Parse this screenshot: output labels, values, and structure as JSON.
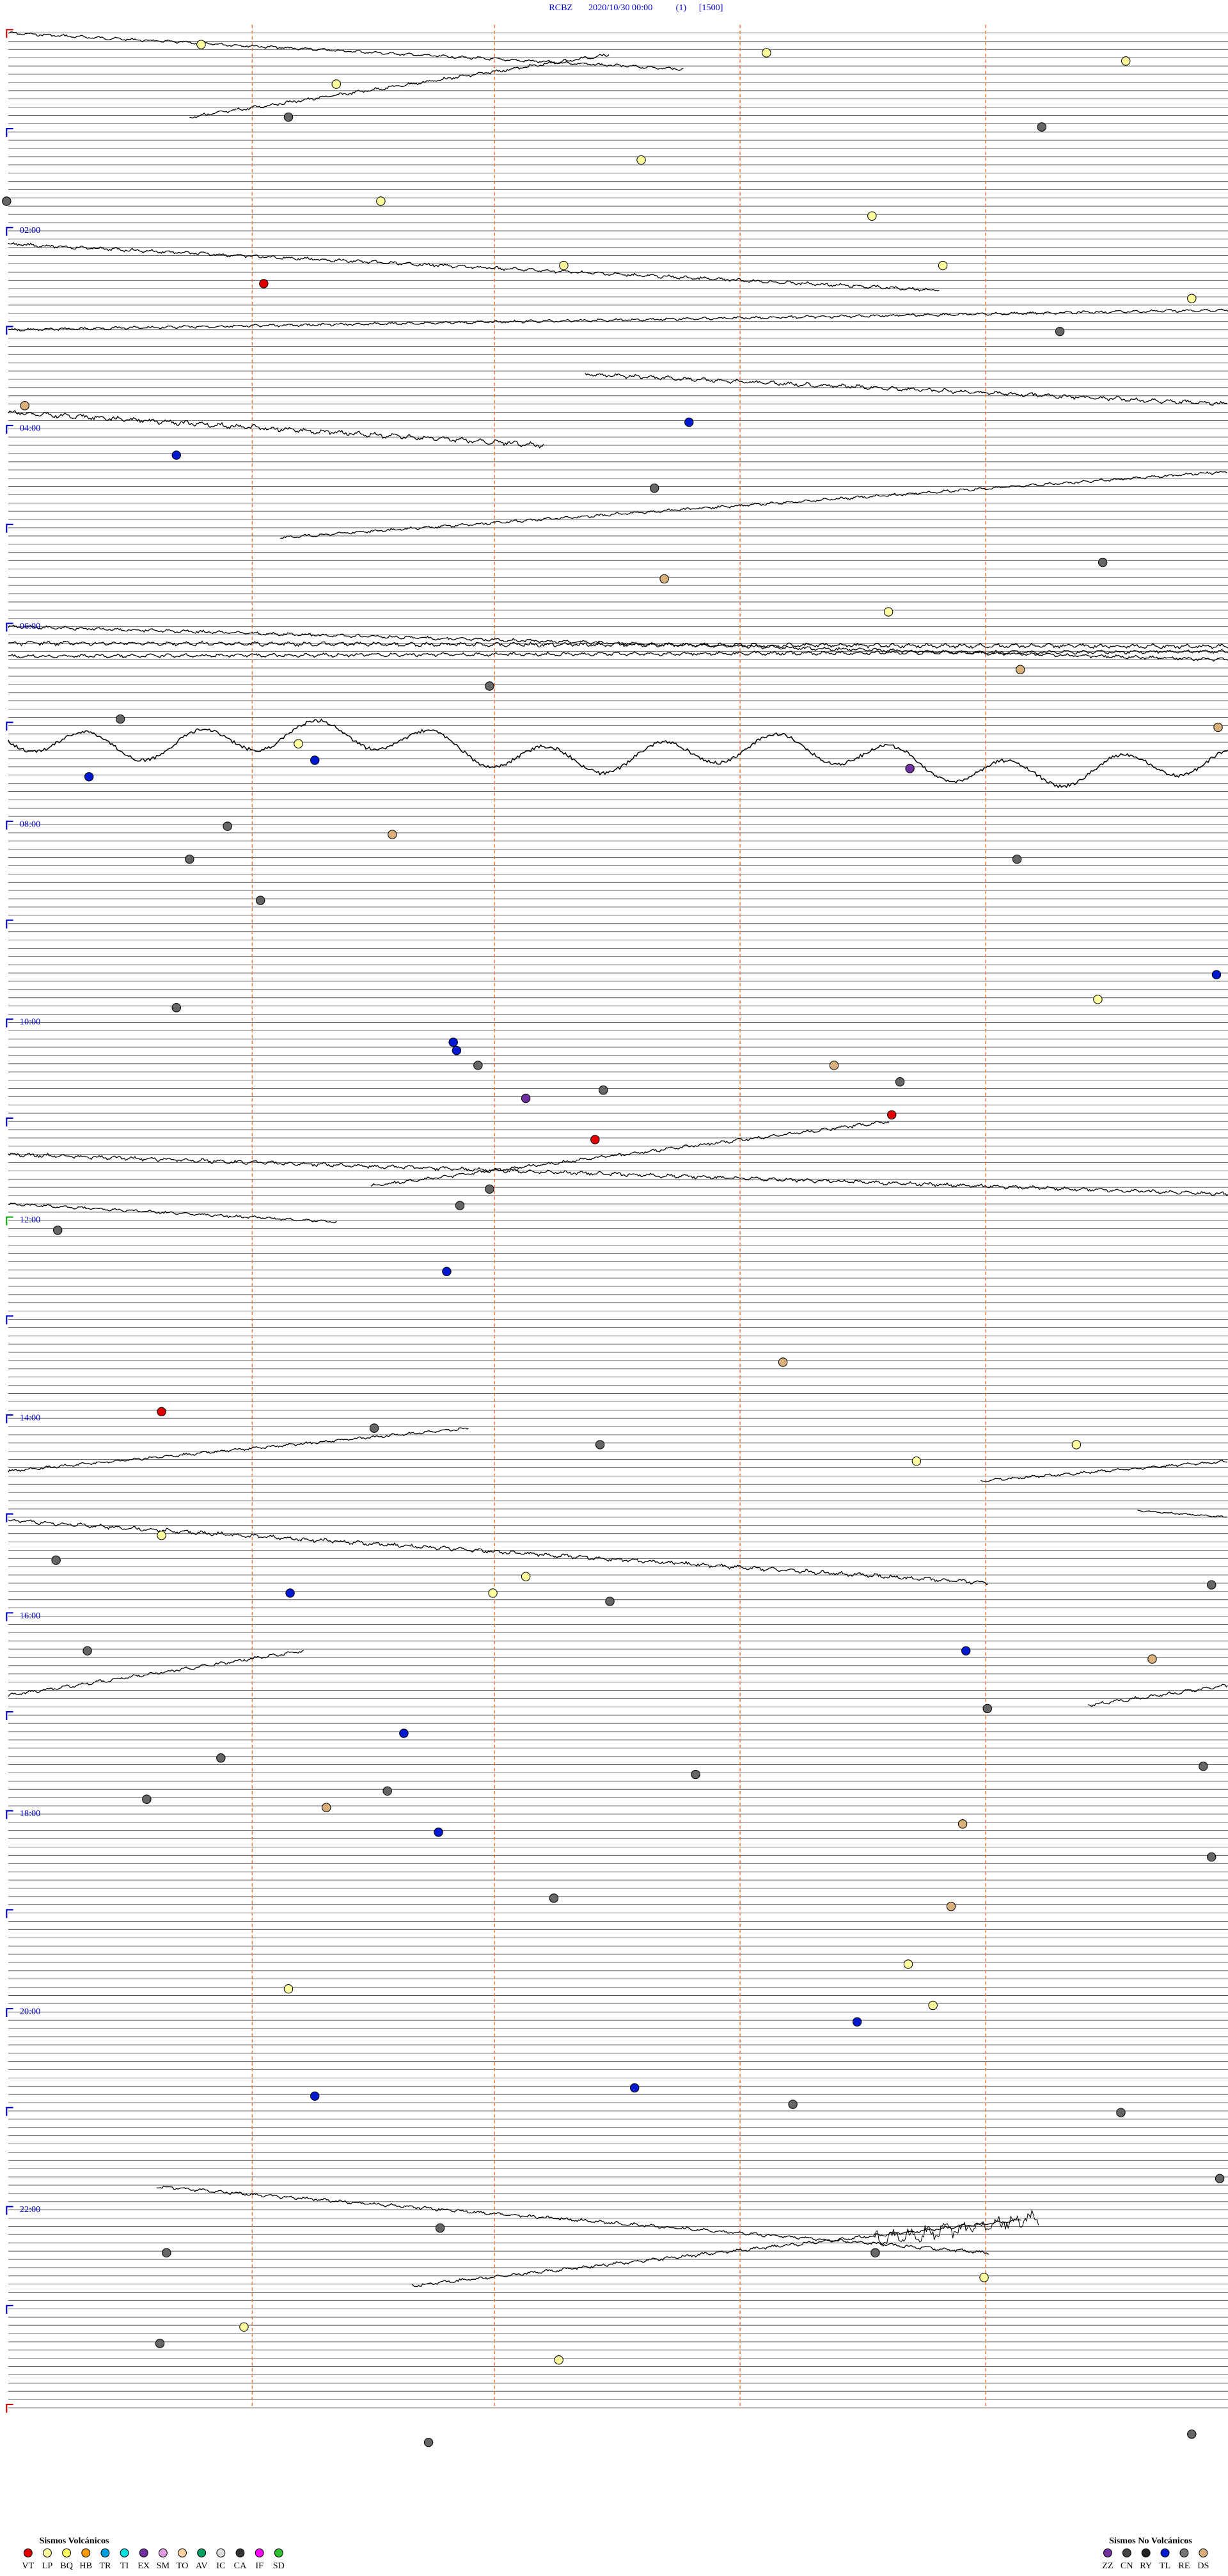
{
  "header": {
    "station": "RCBZ",
    "datetime": "2020/10/30 00:00",
    "run": "(1)",
    "scale": "[1500]"
  },
  "time_labels": [
    "02:00",
    "04:00",
    "06:00",
    "08:00",
    "10:00",
    "12:00",
    "14:00",
    "16:00",
    "18:00",
    "20:00",
    "22:00"
  ],
  "legend": {
    "volcanic": {
      "title": "Sismos Volcánicos",
      "items": [
        "VT",
        "LP",
        "BQ",
        "HB",
        "TR",
        "TI",
        "EX",
        "SM",
        "TO",
        "AV",
        "IC",
        "CA",
        "IF",
        "SD"
      ]
    },
    "non_volcanic": {
      "title": "Sismos No Volcánicos",
      "items": [
        "ZZ",
        "CN",
        "RY",
        "TL",
        "RE",
        "DS"
      ]
    }
  }
}
